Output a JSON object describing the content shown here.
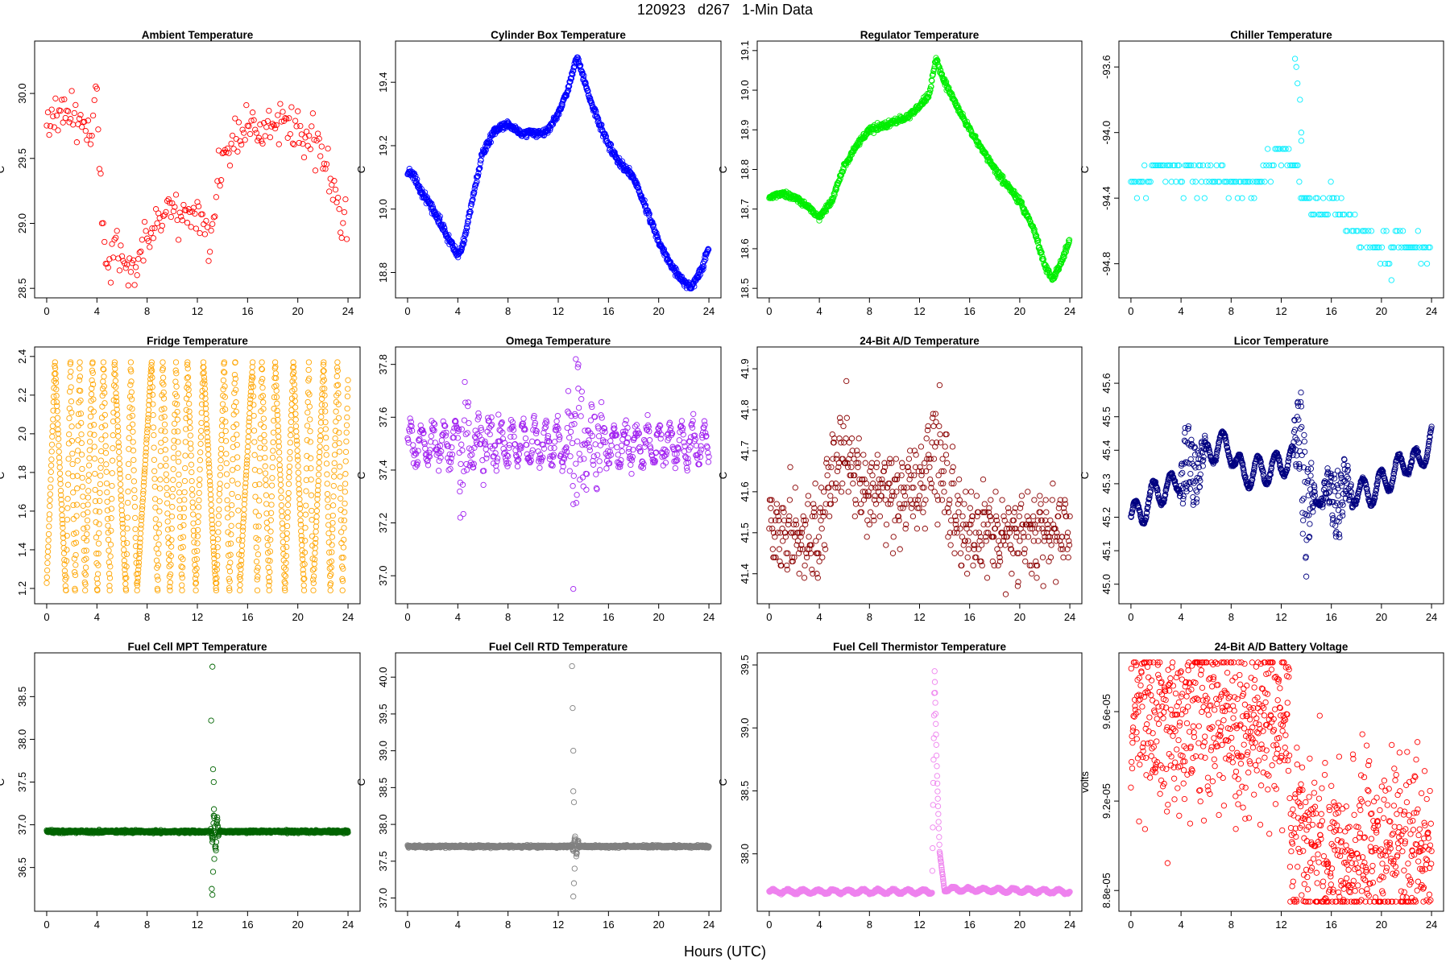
{
  "main_title": "120923   d267   1-Min Data",
  "x_axis_label": "Hours (UTC)",
  "chart_data": [
    {
      "type": "scatter",
      "title": "Ambient Temperature",
      "ylabel": "C",
      "color": "#ff0000",
      "xlim": [
        0,
        24
      ],
      "ylim": [
        28.5,
        30.33
      ],
      "yticks": [
        "28.5",
        "29.0",
        "29.5",
        "30.0"
      ],
      "xticks": [
        "0",
        "4",
        "8",
        "12",
        "16",
        "20",
        "24"
      ],
      "trend": [
        [
          0,
          29.75
        ],
        [
          0.5,
          29.85
        ],
        [
          1,
          29.8
        ],
        [
          2,
          29.85
        ],
        [
          3,
          29.75
        ],
        [
          3.5,
          29.7
        ],
        [
          3.9,
          29.9
        ],
        [
          4.0,
          30.15
        ],
        [
          4.2,
          29.6
        ],
        [
          4.4,
          29.0
        ],
        [
          4.7,
          28.7
        ],
        [
          5.2,
          28.75
        ],
        [
          6,
          28.75
        ],
        [
          6.5,
          28.7
        ],
        [
          7,
          28.6
        ],
        [
          7.5,
          28.8
        ],
        [
          8,
          28.95
        ],
        [
          9,
          29.05
        ],
        [
          10,
          29.15
        ],
        [
          10.5,
          29.0
        ],
        [
          11.5,
          29.1
        ],
        [
          12.5,
          29.0
        ],
        [
          13,
          28.85
        ],
        [
          13.5,
          29.3
        ],
        [
          14,
          29.5
        ],
        [
          15,
          29.65
        ],
        [
          16,
          29.75
        ],
        [
          17,
          29.7
        ],
        [
          18,
          29.75
        ],
        [
          19,
          29.75
        ],
        [
          20,
          29.7
        ],
        [
          21,
          29.65
        ],
        [
          22,
          29.5
        ],
        [
          22.5,
          29.4
        ],
        [
          23,
          29.15
        ],
        [
          23.5,
          29.0
        ],
        [
          24,
          29.0
        ]
      ],
      "noise": 0.09,
      "step": 0.1
    },
    {
      "type": "scatter",
      "title": "Cylinder Box Temperature",
      "ylabel": "C",
      "color": "#0000ff",
      "xlim": [
        0,
        24
      ],
      "ylim": [
        18.75,
        19.5
      ],
      "yticks": [
        "18.8",
        "19.0",
        "19.2",
        "19.4"
      ],
      "xticks": [
        "0",
        "4",
        "8",
        "12",
        "16",
        "20",
        "24"
      ],
      "trend": [
        [
          0,
          19.12
        ],
        [
          0.5,
          19.11
        ],
        [
          1,
          19.06
        ],
        [
          2,
          19.0
        ],
        [
          3,
          18.93
        ],
        [
          4,
          18.85
        ],
        [
          4.5,
          18.9
        ],
        [
          5,
          19.0
        ],
        [
          6,
          19.18
        ],
        [
          7,
          19.25
        ],
        [
          8,
          19.27
        ],
        [
          9,
          19.24
        ],
        [
          11,
          19.24
        ],
        [
          12,
          19.3
        ],
        [
          12.8,
          19.38
        ],
        [
          13.5,
          19.48
        ],
        [
          14.5,
          19.35
        ],
        [
          16,
          19.2
        ],
        [
          17,
          19.14
        ],
        [
          18,
          19.1
        ],
        [
          19,
          19.0
        ],
        [
          20,
          18.9
        ],
        [
          21,
          18.82
        ],
        [
          22,
          18.77
        ],
        [
          22.6,
          18.75
        ],
        [
          23.5,
          18.82
        ],
        [
          24,
          18.88
        ]
      ],
      "noise": 0.006,
      "step": 0.03
    },
    {
      "type": "scatter",
      "title": "Regulator Temperature",
      "ylabel": "C",
      "color": "#00ee00",
      "xlim": [
        0,
        24
      ],
      "ylim": [
        18.5,
        19.1
      ],
      "yticks": [
        "18.5",
        "18.6",
        "18.7",
        "18.8",
        "18.9",
        "19.0",
        "19.1"
      ],
      "xticks": [
        "0",
        "4",
        "8",
        "12",
        "16",
        "20",
        "24"
      ],
      "trend": [
        [
          0,
          18.73
        ],
        [
          1,
          18.74
        ],
        [
          2,
          18.73
        ],
        [
          3,
          18.71
        ],
        [
          4,
          18.68
        ],
        [
          5,
          18.72
        ],
        [
          6,
          18.81
        ],
        [
          7,
          18.86
        ],
        [
          8,
          18.9
        ],
        [
          9,
          18.91
        ],
        [
          11,
          18.93
        ],
        [
          12,
          18.96
        ],
        [
          12.8,
          18.99
        ],
        [
          13.3,
          19.08
        ],
        [
          14,
          19.02
        ],
        [
          16,
          18.9
        ],
        [
          18,
          18.8
        ],
        [
          20,
          18.72
        ],
        [
          21,
          18.66
        ],
        [
          22,
          18.56
        ],
        [
          22.6,
          18.52
        ],
        [
          23.5,
          18.58
        ],
        [
          24,
          18.62
        ]
      ],
      "noise": 0.004,
      "step": 0.03
    },
    {
      "type": "scatter",
      "title": "Chiller Temperature",
      "ylabel": "C",
      "color": "#00eeff",
      "xlim": [
        0,
        24
      ],
      "ylim": [
        -94.95,
        -93.5
      ],
      "yticks": [
        "-94.8",
        "-94.4",
        "-94.0",
        "-93.6"
      ],
      "xticks": [
        "0",
        "4",
        "8",
        "12",
        "16",
        "20",
        "24"
      ],
      "trend": [
        [
          0,
          -94.3
        ],
        [
          1,
          -94.3
        ],
        [
          2,
          -94.25
        ],
        [
          3,
          -94.28
        ],
        [
          4,
          -94.3
        ],
        [
          6,
          -94.25
        ],
        [
          8,
          -94.3
        ],
        [
          10,
          -94.3
        ],
        [
          11,
          -94.2
        ],
        [
          12,
          -94.15
        ],
        [
          13,
          -94.2
        ],
        [
          14,
          -94.4
        ],
        [
          15,
          -94.45
        ],
        [
          16,
          -94.4
        ],
        [
          17,
          -94.5
        ],
        [
          18,
          -94.6
        ],
        [
          19,
          -94.65
        ],
        [
          20,
          -94.75
        ],
        [
          21,
          -94.7
        ],
        [
          22,
          -94.65
        ],
        [
          23,
          -94.7
        ],
        [
          24,
          -94.75
        ]
      ],
      "noise": 0.05,
      "quantum": 0.1,
      "step": 0.12,
      "extra_points": [
        [
          13.1,
          -93.55
        ],
        [
          13.2,
          -93.6
        ],
        [
          13.3,
          -93.7
        ],
        [
          13.5,
          -93.8
        ],
        [
          13.6,
          -94.0
        ],
        [
          13.6,
          -94.05
        ],
        [
          20.8,
          -94.9
        ]
      ]
    },
    {
      "type": "scatter",
      "title": "Fridge Temperature",
      "ylabel": "C",
      "color": "#ffa500",
      "xlim": [
        0,
        24
      ],
      "ylim": [
        1.17,
        2.4
      ],
      "yticks": [
        "1.2",
        "1.4",
        "1.6",
        "1.8",
        "2.0",
        "2.2",
        "2.4"
      ],
      "xticks": [
        "0",
        "4",
        "8",
        "12",
        "16",
        "20",
        "24"
      ],
      "oscillating": [
        1.19,
        2.37
      ],
      "step": 0.02
    },
    {
      "type": "scatter",
      "title": "Omega Temperature",
      "ylabel": "C",
      "color": "#a020f0",
      "xlim": [
        0,
        24
      ],
      "ylim": [
        36.93,
        37.83
      ],
      "yticks": [
        "37.0",
        "37.2",
        "37.4",
        "37.6",
        "37.8"
      ],
      "xticks": [
        "0",
        "4",
        "8",
        "12",
        "16",
        "20",
        "24"
      ],
      "trend": [
        [
          0,
          37.5
        ],
        [
          24,
          37.5
        ]
      ],
      "wave": [
        0.07,
        0.9
      ],
      "noise": 0.02,
      "step": 0.04,
      "bursts": [
        [
          4.5,
          0.25,
          0.6
        ],
        [
          13.5,
          0.3,
          1.0
        ],
        [
          15,
          0.15,
          1.2
        ],
        [
          6,
          0.1,
          2.0
        ]
      ],
      "extra_points": [
        [
          13.2,
          36.95
        ],
        [
          13.4,
          37.82
        ],
        [
          13.6,
          37.8
        ],
        [
          4.2,
          37.22
        ]
      ]
    },
    {
      "type": "scatter",
      "title": "24-Bit A/D Temperature",
      "ylabel": "C",
      "color": "#8b0000",
      "xlim": [
        0,
        24
      ],
      "ylim": [
        41.35,
        41.93
      ],
      "yticks": [
        "41.4",
        "41.5",
        "41.6",
        "41.7",
        "41.8",
        "41.9"
      ],
      "xticks": [
        "0",
        "4",
        "8",
        "12",
        "16",
        "20",
        "24"
      ],
      "trend": [
        [
          0,
          41.5
        ],
        [
          3,
          41.5
        ],
        [
          4,
          41.48
        ],
        [
          5,
          41.65
        ],
        [
          6,
          41.7
        ],
        [
          7,
          41.65
        ],
        [
          8,
          41.6
        ],
        [
          10,
          41.58
        ],
        [
          12,
          41.62
        ],
        [
          13,
          41.72
        ],
        [
          14,
          41.65
        ],
        [
          15,
          41.5
        ],
        [
          16,
          41.52
        ],
        [
          18,
          41.5
        ],
        [
          20,
          41.5
        ],
        [
          22,
          41.5
        ],
        [
          24,
          41.52
        ]
      ],
      "wave": [
        0.05,
        0.5
      ],
      "noise": 0.04,
      "quantum": 0.01,
      "step": 0.04,
      "bursts": [
        [
          14.5,
          0.1,
          1.5
        ],
        [
          6,
          0.1,
          1.0
        ],
        [
          13.3,
          0.12,
          0.5
        ]
      ]
    },
    {
      "type": "scatter",
      "title": "Licor Temperature",
      "ylabel": "C",
      "color": "#000080",
      "xlim": [
        0,
        24
      ],
      "ylim": [
        44.97,
        45.68
      ],
      "yticks": [
        "45.0",
        "45.1",
        "45.2",
        "45.3",
        "45.4",
        "45.5",
        "45.6"
      ],
      "xticks": [
        "0",
        "4",
        "8",
        "12",
        "16",
        "20",
        "24"
      ],
      "trend": [
        [
          0,
          45.2
        ],
        [
          1,
          45.22
        ],
        [
          2,
          45.28
        ],
        [
          3,
          45.28
        ],
        [
          4,
          45.33
        ],
        [
          5,
          45.35
        ],
        [
          6,
          45.38
        ],
        [
          7,
          45.42
        ],
        [
          8,
          45.4
        ],
        [
          9,
          45.32
        ],
        [
          10,
          45.34
        ],
        [
          11,
          45.34
        ],
        [
          12,
          45.36
        ],
        [
          13,
          45.38
        ],
        [
          13.5,
          45.5
        ],
        [
          14,
          45.2
        ],
        [
          15,
          45.28
        ],
        [
          16,
          45.25
        ],
        [
          17,
          45.27
        ],
        [
          18,
          45.28
        ],
        [
          19,
          45.27
        ],
        [
          20,
          45.3
        ],
        [
          21,
          45.33
        ],
        [
          22,
          45.37
        ],
        [
          23,
          45.36
        ],
        [
          24,
          45.44
        ]
      ],
      "wave": [
        0.04,
        1.4
      ],
      "noise": 0.003,
      "step": 0.025,
      "bursts": [
        [
          5,
          0.12,
          1.2
        ],
        [
          13.8,
          0.25,
          1.0
        ],
        [
          16.5,
          0.12,
          1.5
        ],
        [
          4.3,
          0.1,
          0.5
        ]
      ]
    },
    {
      "type": "scatter",
      "title": "Fuel Cell MPT Temperature",
      "ylabel": "C",
      "color": "#006400",
      "xlim": [
        0,
        24
      ],
      "ylim": [
        36.1,
        38.9
      ],
      "yticks": [
        "36.5",
        "37.0",
        "37.5",
        "38.0",
        "38.5"
      ],
      "xticks": [
        "0",
        "4",
        "8",
        "12",
        "16",
        "20",
        "24"
      ],
      "trend": [
        [
          0,
          36.92
        ],
        [
          24,
          36.92
        ]
      ],
      "noise": 0.008,
      "step": 0.02,
      "bursts": [
        [
          13.4,
          0.35,
          0.35
        ]
      ],
      "extra_points": [
        [
          13.2,
          38.85
        ],
        [
          13.1,
          38.22
        ],
        [
          13.25,
          37.65
        ],
        [
          13.3,
          37.5
        ],
        [
          13.15,
          36.25
        ],
        [
          13.2,
          36.18
        ],
        [
          13.25,
          36.45
        ],
        [
          13.35,
          36.6
        ]
      ]
    },
    {
      "type": "scatter",
      "title": "Fuel Cell RTD Temperature",
      "ylabel": "C",
      "color": "#808080",
      "xlim": [
        0,
        24
      ],
      "ylim": [
        36.95,
        40.2
      ],
      "yticks": [
        "37.0",
        "37.5",
        "38.0",
        "38.5",
        "39.0",
        "39.5",
        "40.0"
      ],
      "xticks": [
        "0",
        "4",
        "8",
        "12",
        "16",
        "20",
        "24"
      ],
      "trend": [
        [
          0,
          37.7
        ],
        [
          24,
          37.7
        ]
      ],
      "noise": 0.008,
      "step": 0.02,
      "bursts": [
        [
          13.4,
          0.2,
          0.35
        ]
      ],
      "extra_points": [
        [
          13.1,
          40.15
        ],
        [
          13.15,
          39.58
        ],
        [
          13.2,
          39.0
        ],
        [
          13.2,
          38.45
        ],
        [
          13.25,
          38.3
        ],
        [
          13.2,
          37.02
        ],
        [
          13.25,
          37.2
        ],
        [
          13.3,
          37.4
        ]
      ]
    },
    {
      "type": "scatter",
      "title": "Fuel Cell Thermistor Temperature",
      "ylabel": "C",
      "color": "#ee82ee",
      "xlim": [
        0,
        24
      ],
      "ylim": [
        37.62,
        39.52
      ],
      "yticks": [
        "38.0",
        "38.5",
        "39.0",
        "39.5"
      ],
      "xticks": [
        "0",
        "4",
        "8",
        "12",
        "16",
        "20",
        "24"
      ],
      "trend": [
        [
          0,
          37.7
        ],
        [
          13.0,
          37.7
        ],
        [
          13.2,
          39.45
        ],
        [
          13.4,
          38.6
        ],
        [
          13.6,
          38.0
        ],
        [
          14,
          37.72
        ],
        [
          24,
          37.7
        ]
      ],
      "wave": [
        0.015,
        1.2
      ],
      "noise": 0.004,
      "step": 0.02
    },
    {
      "type": "scatter",
      "title": "24-Bit A/D Battery Voltage",
      "ylabel": "volts",
      "color": "#ff0000",
      "xlim": [
        0,
        24
      ],
      "ylim": [
        8.75e-05,
        9.82e-05
      ],
      "yticks": [
        "8.8e-05",
        "9.2e-05",
        "9.6e-05"
      ],
      "xticks": [
        "0",
        "4",
        "8",
        "12",
        "16",
        "20",
        "24"
      ],
      "trend": [
        [
          0,
          9.57e-05
        ],
        [
          12.6,
          9.57e-05
        ],
        [
          12.7,
          9e-05
        ],
        [
          24,
          8.98e-05
        ]
      ],
      "noise": 2e-06,
      "step": 0.025
    }
  ]
}
